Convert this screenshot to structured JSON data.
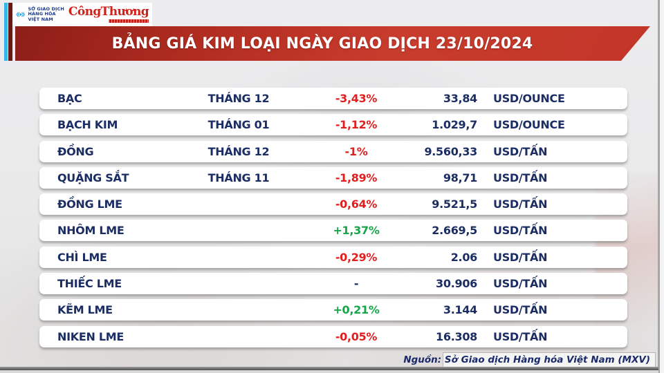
{
  "header": {
    "mxv_logo_lines": [
      "SỞ GIAO DỊCH",
      "HÀNG HÓA",
      "VIỆT NAM"
    ],
    "congthuong_logo": "CôngThương"
  },
  "banner": {
    "title": "BẢNG GIÁ KIM LOẠI NGÀY GIAO DỊCH 23/10/2024"
  },
  "chart_data": {
    "type": "table",
    "title": "BẢNG GIÁ KIM LOẠI NGÀY GIAO DỊCH 23/10/2024",
    "rows": [
      {
        "name": "BẠC",
        "month": "THÁNG 12",
        "change": "-3,43%",
        "price": "33,84",
        "unit": "USD/OUNCE"
      },
      {
        "name": "BẠCH KIM",
        "month": "THÁNG 01",
        "change": "-1,12%",
        "price": "1.029,7",
        "unit": "USD/OUNCE"
      },
      {
        "name": "ĐỒNG",
        "month": "THÁNG 12",
        "change": "-1%",
        "price": "9.560,33",
        "unit": "USD/TẤN"
      },
      {
        "name": "QUẶNG SẮT",
        "month": "THÁNG 11",
        "change": "-1,89%",
        "price": "98,71",
        "unit": "USD/TẤN"
      },
      {
        "name": "ĐỒNG LME",
        "month": "",
        "change": "-0,64%",
        "price": "9.521,5",
        "unit": "USD/TẤN"
      },
      {
        "name": "NHÔM LME",
        "month": "",
        "change": "+1,37%",
        "price": "2.669,5",
        "unit": "USD/TẤN"
      },
      {
        "name": "CHÌ LME",
        "month": "",
        "change": "-0,29%",
        "price": "2.06",
        "unit": "USD/TẤN"
      },
      {
        "name": "THIẾC LME",
        "month": "",
        "change": "-",
        "price": "30.906",
        "unit": "USD/TẤN"
      },
      {
        "name": "KẼM LME",
        "month": "",
        "change": "+0,21%",
        "price": "3.144",
        "unit": "USD/TẤN"
      },
      {
        "name": "NIKEN LME",
        "month": "",
        "change": "-0,05%",
        "price": "16.308",
        "unit": "USD/TẤN"
      }
    ]
  },
  "footer": {
    "source": "Nguồn: Sở Giao dịch Hàng hóa Việt Nam (MXV)"
  },
  "colors": {
    "banner_red": "#c0362a",
    "negative_red": "#e21d1d",
    "positive_green": "#17a54a",
    "text_navy": "#1b2d63",
    "stripe_cyan": "#35b6e9",
    "stripe_maroon": "#6d1712"
  }
}
